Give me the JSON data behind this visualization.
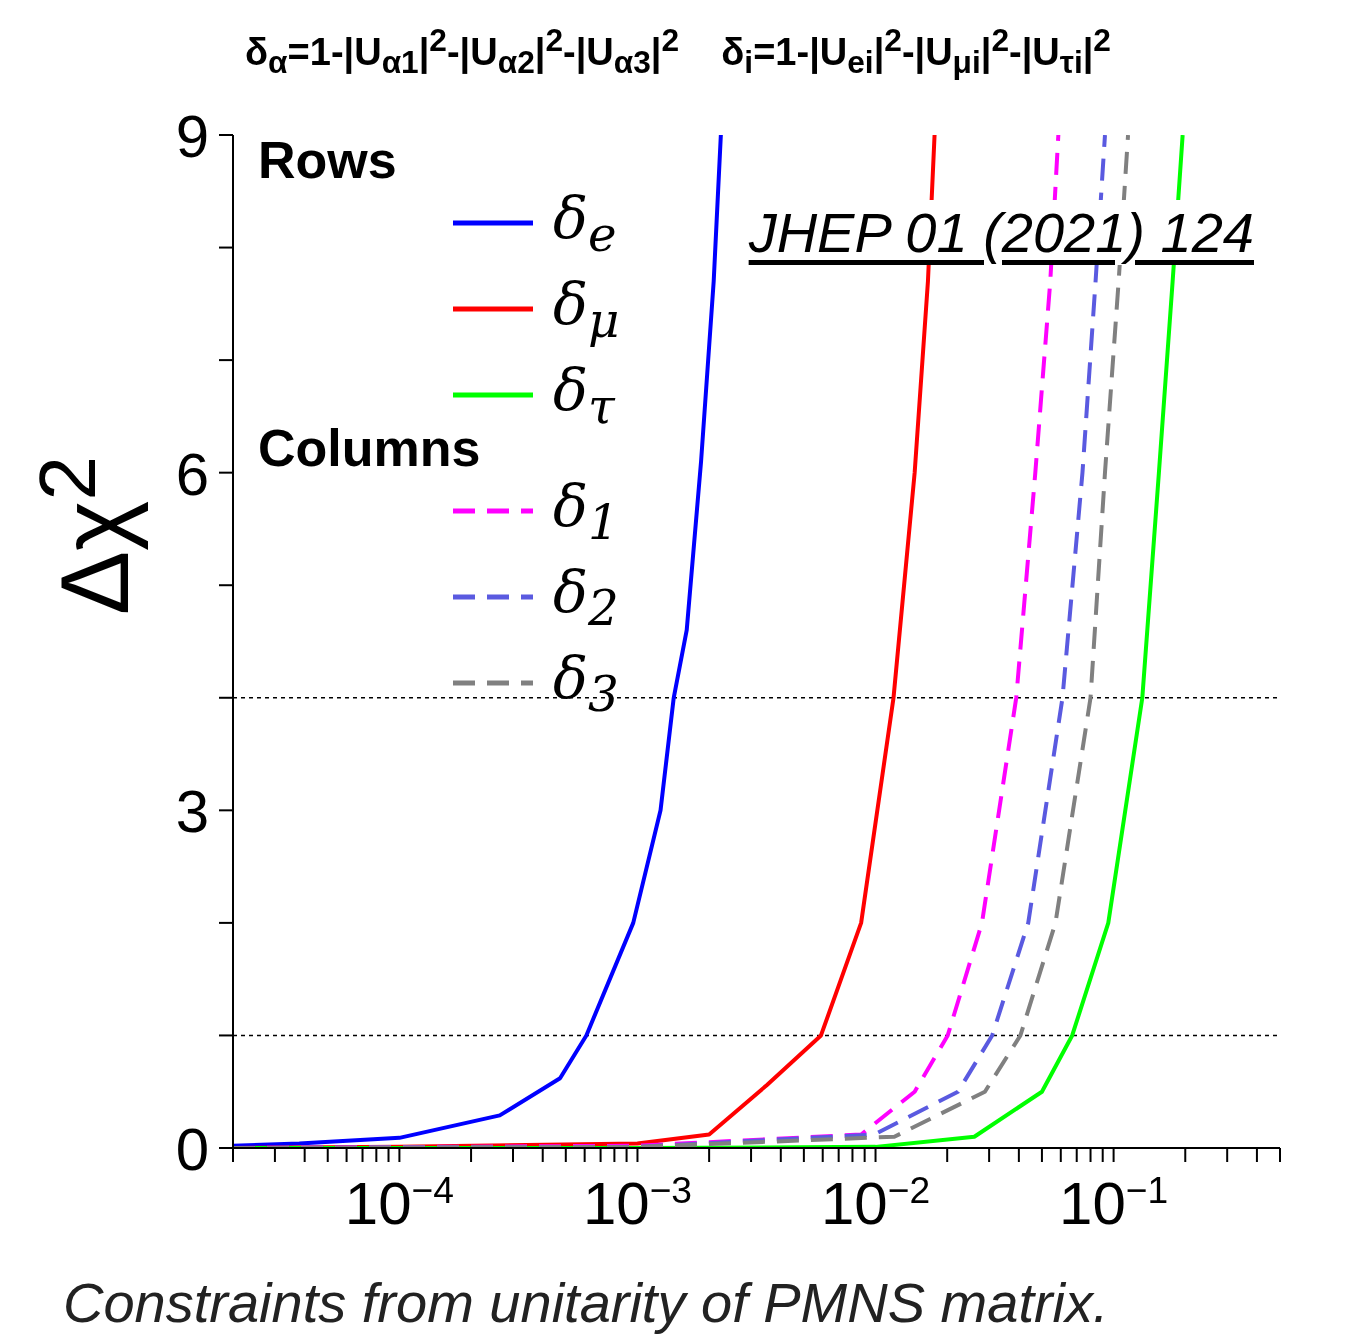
{
  "chart_data": {
    "type": "line",
    "title": "δ$_{α}$=1-|U$_{α1}$|$^{2}$-|U$_{α2}$|$^{2}$-|U$_{α3}$|$^{2}$    δ$_{i}$=1-|U$_{ei}$|$^{2}$-|U$_{μi}$|$^{2}$-|U$_{τi}$|$^{2}$",
    "ylabel": "Δχ$^{2}$",
    "legend_title": "Rows",
    "annotations": [
      "JHEP 01 (2021) 124",
      "Columns",
      "Constraints from unitarity of PMNS matrix."
    ],
    "log": "x",
    "legend": "top left",
    "marker": "none",
    "xlim": [
      2e-05,
      0.5
    ],
    "ylim": [
      0,
      9
    ],
    "xticks": [
      {
        "value": 2e-05,
        "label": null
      },
      {
        "value": 3e-05,
        "label": null
      },
      {
        "value": 4e-05,
        "label": null
      },
      {
        "value": 5e-05,
        "label": null
      },
      {
        "value": 6e-05,
        "label": null
      },
      {
        "value": 7e-05,
        "label": null
      },
      {
        "value": 8e-05,
        "label": null
      },
      {
        "value": 9e-05,
        "label": null
      },
      {
        "value": 0.0001,
        "label": "10$^{−4}$"
      },
      {
        "value": 0.0002,
        "label": null
      },
      {
        "value": 0.0003,
        "label": null
      },
      {
        "value": 0.0004,
        "label": null
      },
      {
        "value": 0.0005,
        "label": null
      },
      {
        "value": 0.0006,
        "label": null
      },
      {
        "value": 0.0007,
        "label": null
      },
      {
        "value": 0.0008,
        "label": null
      },
      {
        "value": 0.0009,
        "label": null
      },
      {
        "value": 0.001,
        "label": "10$^{−3}$"
      },
      {
        "value": 0.002,
        "label": null
      },
      {
        "value": 0.003,
        "label": null
      },
      {
        "value": 0.004,
        "label": null
      },
      {
        "value": 0.005,
        "label": null
      },
      {
        "value": 0.006,
        "label": null
      },
      {
        "value": 0.007,
        "label": null
      },
      {
        "value": 0.008,
        "label": null
      },
      {
        "value": 0.009,
        "label": null
      },
      {
        "value": 0.01,
        "label": "10$^{−2}$"
      },
      {
        "value": 0.02,
        "label": null
      },
      {
        "value": 0.03,
        "label": null
      },
      {
        "value": 0.04,
        "label": null
      },
      {
        "value": 0.05,
        "label": null
      },
      {
        "value": 0.06,
        "label": null
      },
      {
        "value": 0.07,
        "label": null
      },
      {
        "value": 0.08,
        "label": null
      },
      {
        "value": 0.09,
        "label": null
      },
      {
        "value": 0.1,
        "label": "10$^{−1}$"
      },
      {
        "value": 0.2,
        "label": null
      },
      {
        "value": 0.3,
        "label": null
      },
      {
        "value": 0.4,
        "label": null
      },
      {
        "value": 0.5,
        "label": null
      }
    ],
    "yticks": [
      0,
      {
        "value": 1,
        "label": null
      },
      {
        "value": 2,
        "label": null
      },
      3,
      {
        "value": 4,
        "label": null
      },
      {
        "value": 5,
        "label": null
      },
      6,
      {
        "value": 7,
        "label": null
      },
      {
        "value": 8,
        "label": null
      },
      9
    ],
    "ref_lines": [
      {
        "axis": "y",
        "value": 1,
        "color": "#000000",
        "line_style": "dotted"
      },
      {
        "axis": "y",
        "value": 4,
        "color": "#000000",
        "line_style": "dotted"
      }
    ],
    "series": [
      {
        "name": "δ$_{e}$",
        "color": "#0000ff",
        "line_style": "solid",
        "x": [
          2e-05,
          3.8e-05,
          0.0001,
          0.000264,
          0.000473,
          0.00061,
          0.00096,
          0.00125,
          0.00142,
          0.00161,
          0.00185,
          0.00209,
          0.00224
        ],
        "values": [
          0.02,
          0.04,
          0.09,
          0.29,
          0.62,
          1.0,
          2.0,
          3.0,
          4.0,
          4.6,
          6.1,
          7.7,
          9
        ]
      },
      {
        "name": "δ$_{μ}$",
        "color": "#ff0000",
        "line_style": "solid",
        "x": [
          2e-05,
          0.0001,
          0.001,
          0.002,
          0.0035,
          0.0059,
          0.0087,
          0.0119,
          0.0146,
          0.0166,
          0.0177
        ],
        "values": [
          0,
          0.01,
          0.04,
          0.12,
          0.56,
          1.0,
          2.0,
          4.0,
          6.0,
          7.7,
          9
        ]
      },
      {
        "name": "δ$_{τ}$",
        "color": "#00ff00",
        "line_style": "solid",
        "x": [
          2e-05,
          0.001,
          0.01,
          0.026,
          0.05,
          0.067,
          0.095,
          0.132,
          0.155,
          0.177,
          0.195
        ],
        "values": [
          0,
          0,
          0.01,
          0.1,
          0.5,
          1.0,
          2.0,
          4.0,
          6.0,
          7.7,
          9
        ]
      },
      {
        "name": "δ$_{1}$",
        "color": "#ff00ff",
        "line_style": "dashed",
        "x": [
          2e-05,
          0.001,
          0.0087,
          0.0146,
          0.0201,
          0.028,
          0.039,
          0.0469,
          0.0542,
          0.0586
        ],
        "values": [
          0,
          0.02,
          0.12,
          0.5,
          1.0,
          2.0,
          4.0,
          6.0,
          7.7,
          9
        ]
      },
      {
        "name": "δ$_{2}$",
        "color": "#5a5ae0",
        "line_style": "dashed",
        "x": [
          2e-05,
          0.001,
          0.0099,
          0.0222,
          0.0309,
          0.0438,
          0.061,
          0.074,
          0.084,
          0.092
        ],
        "values": [
          0,
          0.01,
          0.12,
          0.5,
          1.0,
          2.0,
          4.0,
          6.0,
          7.7,
          9
        ]
      },
      {
        "name": "δ$_{3}$",
        "color": "#808080",
        "line_style": "dashed",
        "x": [
          2e-05,
          0.001,
          0.012,
          0.0288,
          0.0406,
          0.057,
          0.08,
          0.092,
          0.105,
          0.115
        ],
        "values": [
          0,
          0.01,
          0.1,
          0.5,
          1.0,
          2.0,
          4.0,
          6.0,
          7.7,
          9
        ]
      }
    ]
  }
}
